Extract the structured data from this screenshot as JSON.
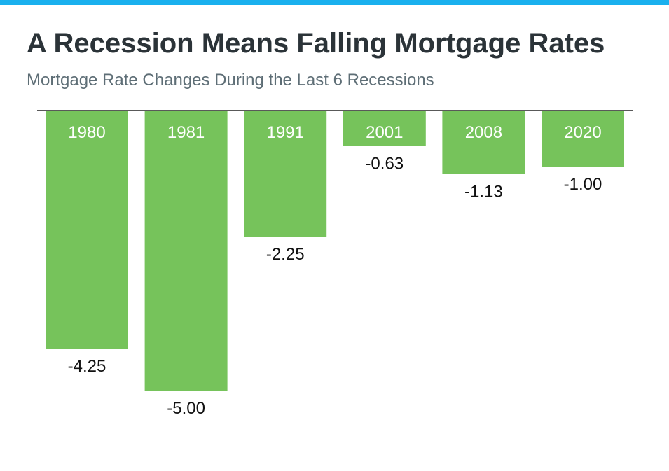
{
  "header": {
    "title": "A Recession Means Falling Mortgage Rates",
    "subtitle": "Mortgage Rate Changes During the Last 6 Recessions"
  },
  "colors": {
    "accent_bar": "#1ab0ee",
    "bar_fill": "#76c35b",
    "axis_line": "#222222",
    "value_label": "#111111",
    "category_label": "#ffffff"
  },
  "chart_data": {
    "type": "bar",
    "orientation": "vertical-negative",
    "categories": [
      "1980",
      "1981",
      "1991",
      "2001",
      "2008",
      "2020"
    ],
    "values": [
      -4.25,
      -5.0,
      -2.25,
      -0.63,
      -1.13,
      -1.0
    ],
    "value_labels": [
      "-4.25",
      "-5.00",
      "-2.25",
      "-0.63",
      "-1.13",
      "-1.00"
    ],
    "ylim": [
      -5,
      0
    ],
    "grid": false,
    "legend": "none"
  }
}
